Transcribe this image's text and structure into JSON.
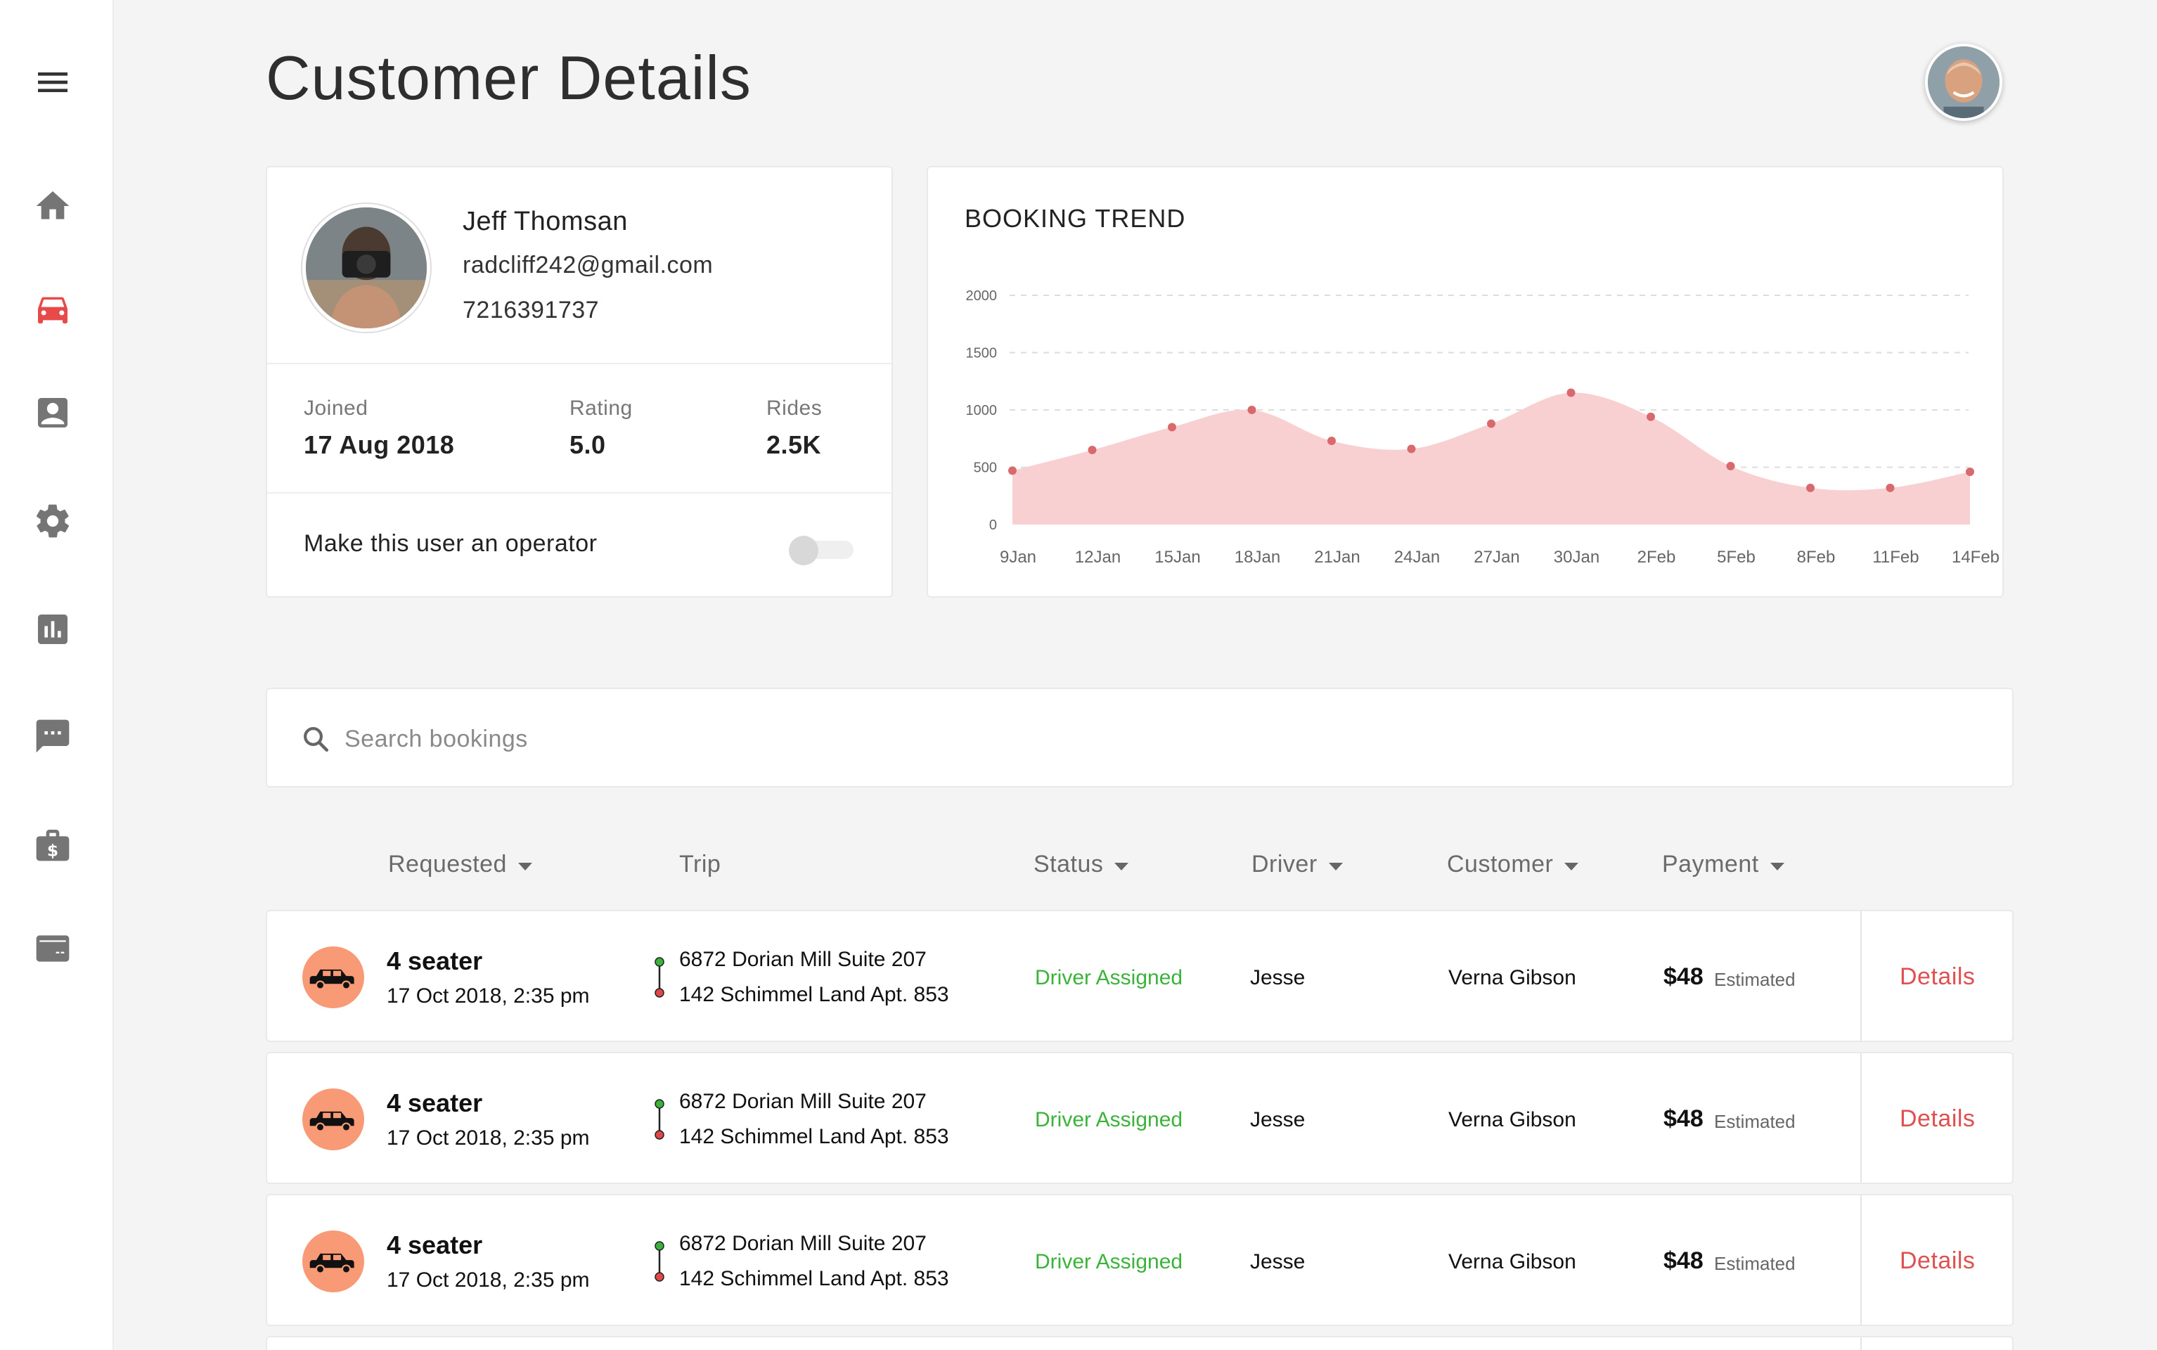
{
  "header": {
    "title": "Customer Details"
  },
  "sidebar": {
    "items": [
      {
        "name": "menu-icon",
        "active": false
      },
      {
        "name": "home-icon",
        "active": false
      },
      {
        "name": "car-icon",
        "active": true
      },
      {
        "name": "contact-icon",
        "active": false
      },
      {
        "name": "gear-icon",
        "active": false
      },
      {
        "name": "bar-chart-icon",
        "active": false
      },
      {
        "name": "chat-icon",
        "active": false
      },
      {
        "name": "wallet-icon",
        "active": false
      },
      {
        "name": "card-icon",
        "active": false
      }
    ],
    "active_color": "#e84a4a",
    "icon_color": "#757575"
  },
  "profile": {
    "name": "Jeff Thomsan",
    "email": "radcliff242@gmail.com",
    "phone": "7216391737",
    "joined_label": "Joined",
    "joined_value": "17 Aug 2018",
    "rating_label": "Rating",
    "rating_value": "5.0",
    "rides_label": "Rides",
    "rides_value": "2.5K",
    "operator_label": "Make this user an operator",
    "operator_enabled": false
  },
  "chart_data": {
    "type": "area",
    "title": "BOOKING TREND",
    "categories": [
      "9Jan",
      "12Jan",
      "15Jan",
      "18Jan",
      "21Jan",
      "24Jan",
      "27Jan",
      "30Jan",
      "2Feb",
      "5Feb",
      "8Feb",
      "11Feb",
      "14Feb"
    ],
    "series": [
      {
        "x": [
          "9Jan",
          "12Jan",
          "15Jan",
          "18Jan",
          "21Jan",
          "24Jan",
          "27Jan",
          "30Jan",
          "2Feb",
          "5Feb",
          "8Feb",
          "11Feb",
          "14Feb"
        ],
        "values": [
          470,
          650,
          850,
          1000,
          730,
          660,
          880,
          1150,
          940,
          510,
          320,
          320,
          460
        ]
      }
    ],
    "yticks": [
      "0",
      "500",
      "1000",
      "1500",
      "2000"
    ],
    "ylim": [
      0,
      2000
    ],
    "grid": true,
    "fill_color": "#f9d0d1",
    "point_color": "#d86a6e"
  },
  "search": {
    "placeholder": "Search bookings"
  },
  "table": {
    "columns": [
      {
        "label": "Requested",
        "sortable": true
      },
      {
        "label": "Trip",
        "sortable": false
      },
      {
        "label": "Status",
        "sortable": true
      },
      {
        "label": "Driver",
        "sortable": true
      },
      {
        "label": "Customer",
        "sortable": true
      },
      {
        "label": "Payment",
        "sortable": true
      }
    ],
    "rows": [
      {
        "vehicle": "4 seater",
        "requested": "17 Oct 2018, 2:35 pm",
        "from": "6872 Dorian Mill Suite 207",
        "to": "142 Schimmel Land Apt. 853",
        "status": "Driver Assigned",
        "driver": "Jesse",
        "customer": "Verna Gibson",
        "amount": "$48",
        "payment_note": "Estimated",
        "action": "Details"
      },
      {
        "vehicle": "4 seater",
        "requested": "17 Oct 2018, 2:35 pm",
        "from": "6872 Dorian Mill Suite 207",
        "to": "142 Schimmel Land Apt. 853",
        "status": "Driver Assigned",
        "driver": "Jesse",
        "customer": "Verna Gibson",
        "amount": "$48",
        "payment_note": "Estimated",
        "action": "Details"
      },
      {
        "vehicle": "4 seater",
        "requested": "17 Oct 2018, 2:35 pm",
        "from": "6872 Dorian Mill Suite 207",
        "to": "142 Schimmel Land Apt. 853",
        "status": "Driver Assigned",
        "driver": "Jesse",
        "customer": "Verna Gibson",
        "amount": "$48",
        "payment_note": "Estimated",
        "action": "Details"
      }
    ],
    "status_color": "#3bb33b",
    "action_color": "#e05050"
  }
}
